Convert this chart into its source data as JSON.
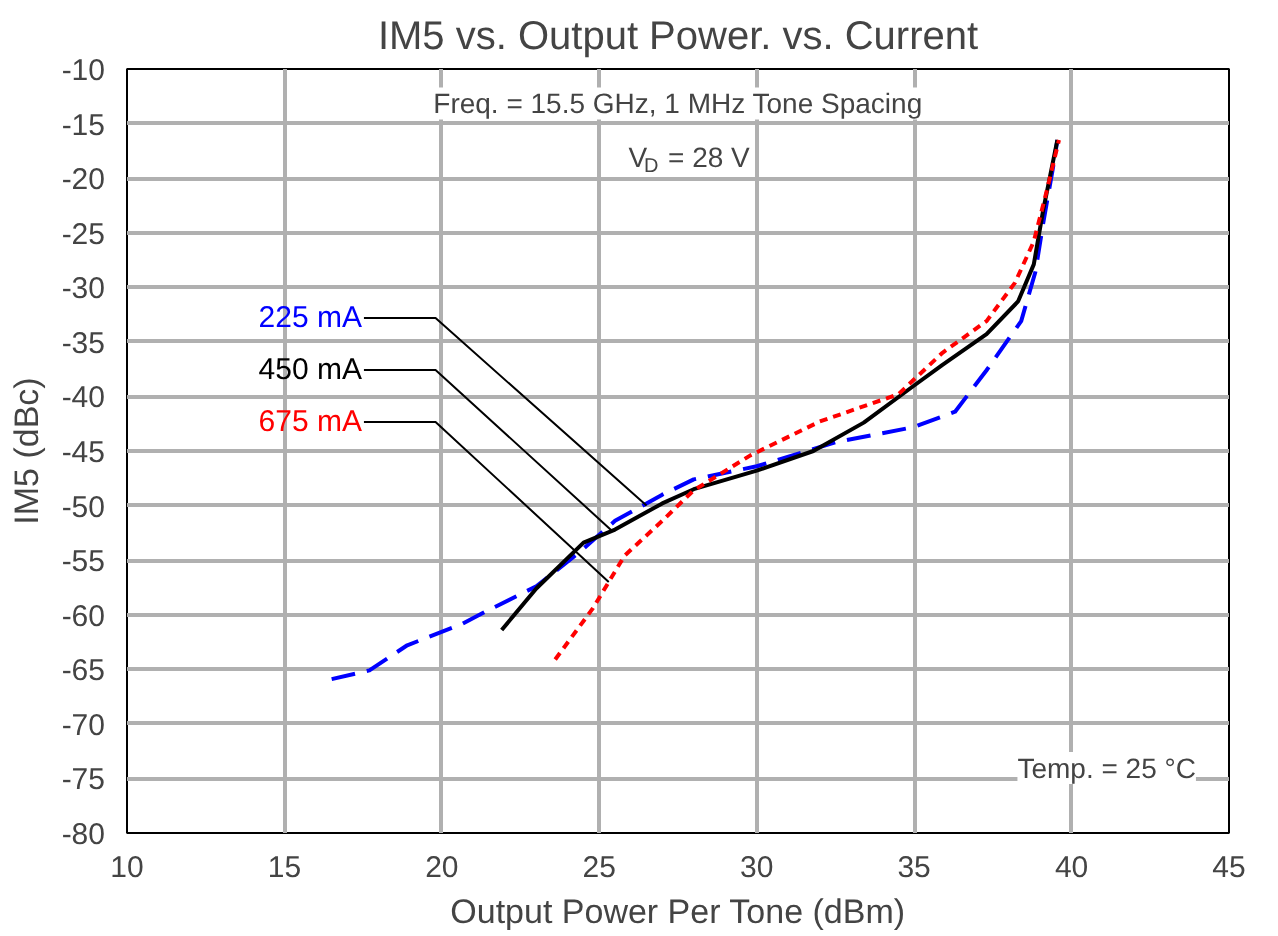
{
  "chart_data": {
    "type": "line",
    "title": "IM5 vs. Output Power. vs. Current",
    "xlabel": "Output Power Per Tone (dBm)",
    "ylabel": "IM5 (dBc)",
    "xlim": [
      10,
      45
    ],
    "xticks": [
      10,
      15,
      20,
      25,
      30,
      35,
      40,
      45
    ],
    "ylim": [
      -80,
      -10
    ],
    "yticks": [
      -80,
      -75,
      -70,
      -65,
      -60,
      -55,
      -50,
      -45,
      -40,
      -35,
      -30,
      -25,
      -20,
      -15,
      -10
    ],
    "grid": true,
    "series": [
      {
        "color": "#0000ff",
        "line_style": "dashed",
        "x": [
          16.5,
          17.7,
          18.9,
          20.6,
          21.4,
          23.0,
          24.4,
          25.5,
          27.0,
          28.0,
          30.0,
          32.5,
          35.0,
          36.3,
          37.3,
          38.4,
          38.85,
          39.1,
          39.4,
          39.55
        ],
        "values": [
          -65.9,
          -65.1,
          -62.8,
          -60.9,
          -59.7,
          -57.4,
          -54.2,
          -51.4,
          -49.0,
          -47.6,
          -46.4,
          -44.2,
          -42.8,
          -41.4,
          -37.6,
          -33.1,
          -28.6,
          -24.1,
          -19.2,
          -16.5
        ]
      },
      {
        "color": "#000000",
        "line_style": "solid",
        "x": [
          21.9,
          23.0,
          24.5,
          25.5,
          27.0,
          28.0,
          30.0,
          31.8,
          33.4,
          35.0,
          35.9,
          37.3,
          38.3,
          38.8,
          39.1,
          39.55
        ],
        "values": [
          -61.4,
          -57.6,
          -53.4,
          -52.2,
          -49.8,
          -48.5,
          -46.8,
          -45.0,
          -42.4,
          -39.0,
          -37.1,
          -34.3,
          -31.3,
          -27.9,
          -22.9,
          -16.5
        ]
      },
      {
        "color": "#ff0000",
        "line_style": "dotted",
        "x": [
          23.6,
          24.8,
          25.8,
          27.0,
          28.0,
          29.8,
          32.0,
          34.5,
          35.9,
          37.3,
          38.2,
          38.8,
          39.2,
          39.6
        ],
        "values": [
          -64.1,
          -59.4,
          -54.6,
          -51.4,
          -48.6,
          -45.4,
          -42.3,
          -39.8,
          -36.0,
          -33.1,
          -29.6,
          -25.8,
          -21.3,
          -16.5
        ]
      }
    ],
    "annotations": [
      {
        "text": "225 mA",
        "x": 26.5,
        "y": -50.0
      },
      {
        "text": "450 mA",
        "x": 25.4,
        "y": -52.3
      },
      {
        "text": "675 mA",
        "x": 25.3,
        "y": -57.0
      },
      "Freq. = 15.5 GHz, 1 MHz Tone Spacing",
      "V$_{D}$ = 28 V",
      "Temp. = 25 °C"
    ]
  }
}
